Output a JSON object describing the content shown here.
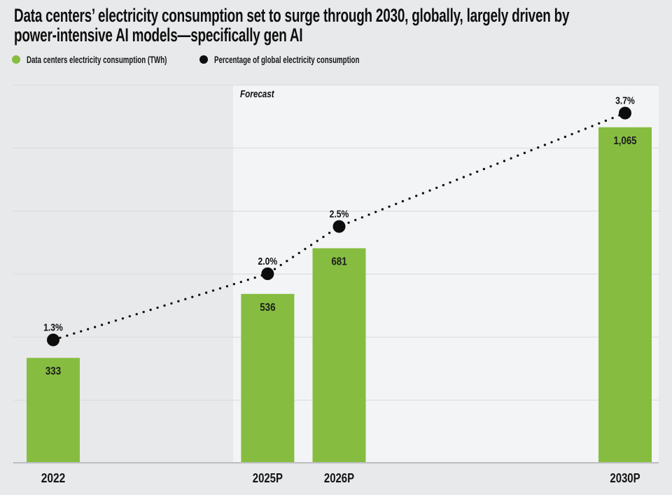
{
  "page": {
    "background": "#e8e9eb",
    "forecast_panel_color": "#f3f4f5"
  },
  "header": {
    "title_line1": "Data centers’ electricity consumption set to surge through 2030, globally, largely driven by",
    "title_line2": "power-intensive AI models—specifically gen AI"
  },
  "legend": {
    "items": [
      {
        "label": "Data centers electricity consumption (TWh)",
        "swatch_color": "#86bd40"
      },
      {
        "label": "Percentage of global electricity consumption",
        "swatch_color": "#0d0d0d"
      }
    ]
  },
  "chart_data": {
    "type": "bar",
    "subtype": "combo: bars (TWh) + dotted trend line with point markers (% of global electricity)",
    "title": "Data centers’ electricity consumption set to surge through 2030, globally, largely driven by power-intensive AI models—specifically gen AI",
    "categories": [
      "2022",
      "2025P",
      "2026P",
      "2030P"
    ],
    "x_years": [
      2022,
      2025,
      2026,
      2030
    ],
    "annotation_forecast": "Forecast",
    "grid": {
      "on": true,
      "step_twh": 200
    },
    "legend_position": "top-left",
    "y_axis_labels_visible": false,
    "series": [
      {
        "name": "Data centers electricity consumption (TWh)",
        "type": "bar",
        "values": [
          333,
          536,
          681,
          1065
        ],
        "value_labels": [
          "333",
          "536",
          "681",
          "1,065"
        ],
        "color": "#86bd40",
        "axis_min": 0,
        "axis_max": 1200
      },
      {
        "name": "Percentage of global electricity consumption",
        "type": "dotted-line-with-points",
        "values": [
          1.3,
          2.0,
          2.5,
          3.7
        ],
        "value_labels": [
          "1.3%",
          "2.0%",
          "2.5%",
          "3.7%"
        ],
        "color": "#0d0d0d",
        "axis_min": 0,
        "axis_max": 4
      }
    ]
  }
}
